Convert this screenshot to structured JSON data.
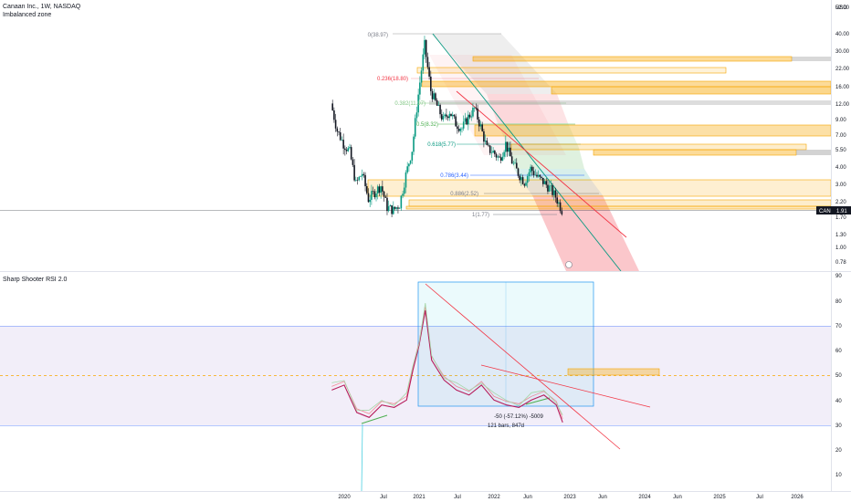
{
  "header": {
    "symbol_line": "Canaan Inc., 1W, NASDAQ",
    "indicator": "Imbalanced zone"
  },
  "rsi_panel": {
    "title": "Sharp Shooter RSI 2.0"
  },
  "price_axis": {
    "currency": "USD",
    "ticks": [
      "52.00",
      "40.00",
      "30.00",
      "22.00",
      "16.00",
      "12.00",
      "9.00",
      "7.00",
      "5.50",
      "4.00",
      "3.00",
      "2.20",
      "1.70",
      "1.30",
      "1.00",
      "0.78"
    ]
  },
  "rsi_axis": {
    "ticks": [
      "90",
      "80",
      "70",
      "60",
      "50",
      "40",
      "30",
      "20",
      "10"
    ]
  },
  "time_axis": {
    "ticks": [
      "2020",
      "Jul",
      "2021",
      "Jul",
      "2022",
      "Jun",
      "2023",
      "Jun",
      "2024",
      "Jun",
      "2025",
      "Jul",
      "2026"
    ]
  },
  "price_tag": {
    "symbol": "CAN",
    "value": "1.91",
    "color": "#131722"
  },
  "fib_levels": [
    {
      "label": "0(38.97)",
      "color": "#787b86"
    },
    {
      "label": "0.236(18.80)",
      "color": "#f23645"
    },
    {
      "label": "0.382(11.97)",
      "color": "#81c784"
    },
    {
      "label": "0.5(8.32)",
      "color": "#4caf50"
    },
    {
      "label": "0.618(5.77)",
      "color": "#089981"
    },
    {
      "label": "0.786(3.44)",
      "color": "#2962ff"
    },
    {
      "label": "0.886(2.52)",
      "color": "#787b86"
    },
    {
      "label": "1(1.77)",
      "color": "#787b86"
    }
  ],
  "measure": {
    "line1": "-50 (-57.12%) -5009",
    "line2": "121 bars, 847d"
  },
  "colors": {
    "up": "#089981",
    "down": "#131722",
    "orange_zone": "#f7a600",
    "grey_zone": "#9e9e9e",
    "rsi_band": "#7e57c2",
    "trend_red": "#f23645",
    "trend_green": "#089981"
  },
  "chart_data": {
    "type": "candlestick",
    "ticker": "CAN",
    "interval": "1W",
    "y_scale": "log",
    "ylim": [
      0.7,
      55
    ],
    "last_price": 1.91,
    "close_series": {
      "x": [
        "2019-11",
        "2019-12",
        "2020-01",
        "2020-02",
        "2020-03",
        "2020-04",
        "2020-05",
        "2020-06",
        "2020-07",
        "2020-08",
        "2020-09",
        "2020-10",
        "2020-11",
        "2020-12",
        "2021-01",
        "2021-02",
        "2021-03",
        "2021-04",
        "2021-05",
        "2021-06",
        "2021-07",
        "2021-08",
        "2021-09",
        "2021-10",
        "2021-11",
        "2021-12",
        "2022-01",
        "2022-02",
        "2022-03",
        "2022-04",
        "2022-05",
        "2022-06",
        "2022-07",
        "2022-08",
        "2022-09",
        "2022-10",
        "2022-11",
        "2022-12"
      ],
      "y": [
        12.0,
        7.5,
        6.0,
        5.2,
        3.0,
        3.6,
        2.3,
        2.6,
        2.9,
        2.0,
        1.9,
        2.1,
        3.5,
        5.4,
        14.0,
        33.0,
        15.0,
        11.5,
        9.0,
        10.5,
        8.5,
        7.8,
        9.5,
        11.0,
        8.0,
        5.5,
        5.2,
        4.6,
        6.0,
        4.4,
        3.6,
        3.1,
        3.9,
        3.4,
        3.1,
        2.8,
        2.4,
        1.91
      ]
    },
    "rsi": {
      "name": "Sharp Shooter RSI 2.0",
      "ylim": [
        0,
        90
      ],
      "band": [
        30,
        70
      ],
      "midline": 50,
      "x": [
        "2019-11",
        "2020-01",
        "2020-03",
        "2020-05",
        "2020-07",
        "2020-09",
        "2020-11",
        "2020-12",
        "2021-01",
        "2021-02",
        "2021-03",
        "2021-05",
        "2021-07",
        "2021-09",
        "2021-11",
        "2022-01",
        "2022-03",
        "2022-05",
        "2022-07",
        "2022-09",
        "2022-11",
        "2022-12"
      ],
      "y": [
        44,
        46,
        35,
        33,
        38,
        37,
        40,
        52,
        62,
        76,
        56,
        48,
        44,
        42,
        46,
        40,
        38,
        37,
        40,
        42,
        38,
        31
      ]
    }
  }
}
